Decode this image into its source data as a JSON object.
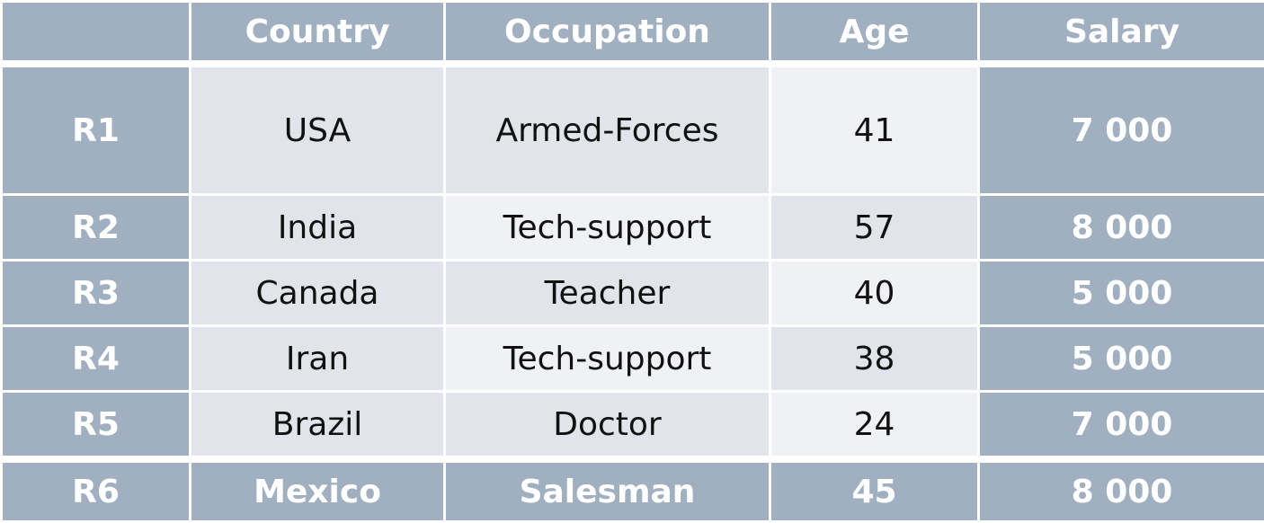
{
  "headers": [
    "",
    "Country",
    "Occupation",
    "Age",
    "Salary"
  ],
  "rows": [
    {
      "label": "R1",
      "country": "USA",
      "occupation": "Armed-Forces",
      "age": "41",
      "salary": "7 000"
    },
    {
      "label": "R2",
      "country": "India",
      "occupation": "Tech-support",
      "age": "57",
      "salary": "8 000"
    },
    {
      "label": "R3",
      "country": "Canada",
      "occupation": "Teacher",
      "age": "40",
      "salary": "5 000"
    },
    {
      "label": "R4",
      "country": "Iran",
      "occupation": "Tech-support",
      "age": "38",
      "salary": "5 000"
    },
    {
      "label": "R5",
      "country": "Brazil",
      "occupation": "Doctor",
      "age": "24",
      "salary": "7 000"
    },
    {
      "label": "R6",
      "country": "Mexico",
      "occupation": "Salesman",
      "age": "45",
      "salary": "8 000"
    }
  ],
  "colors": {
    "header_bg": "#a0b0c0",
    "cell_bg": "#e1e4ea",
    "cell_light_bg": "#eff1f4",
    "border": "#ffffff"
  }
}
